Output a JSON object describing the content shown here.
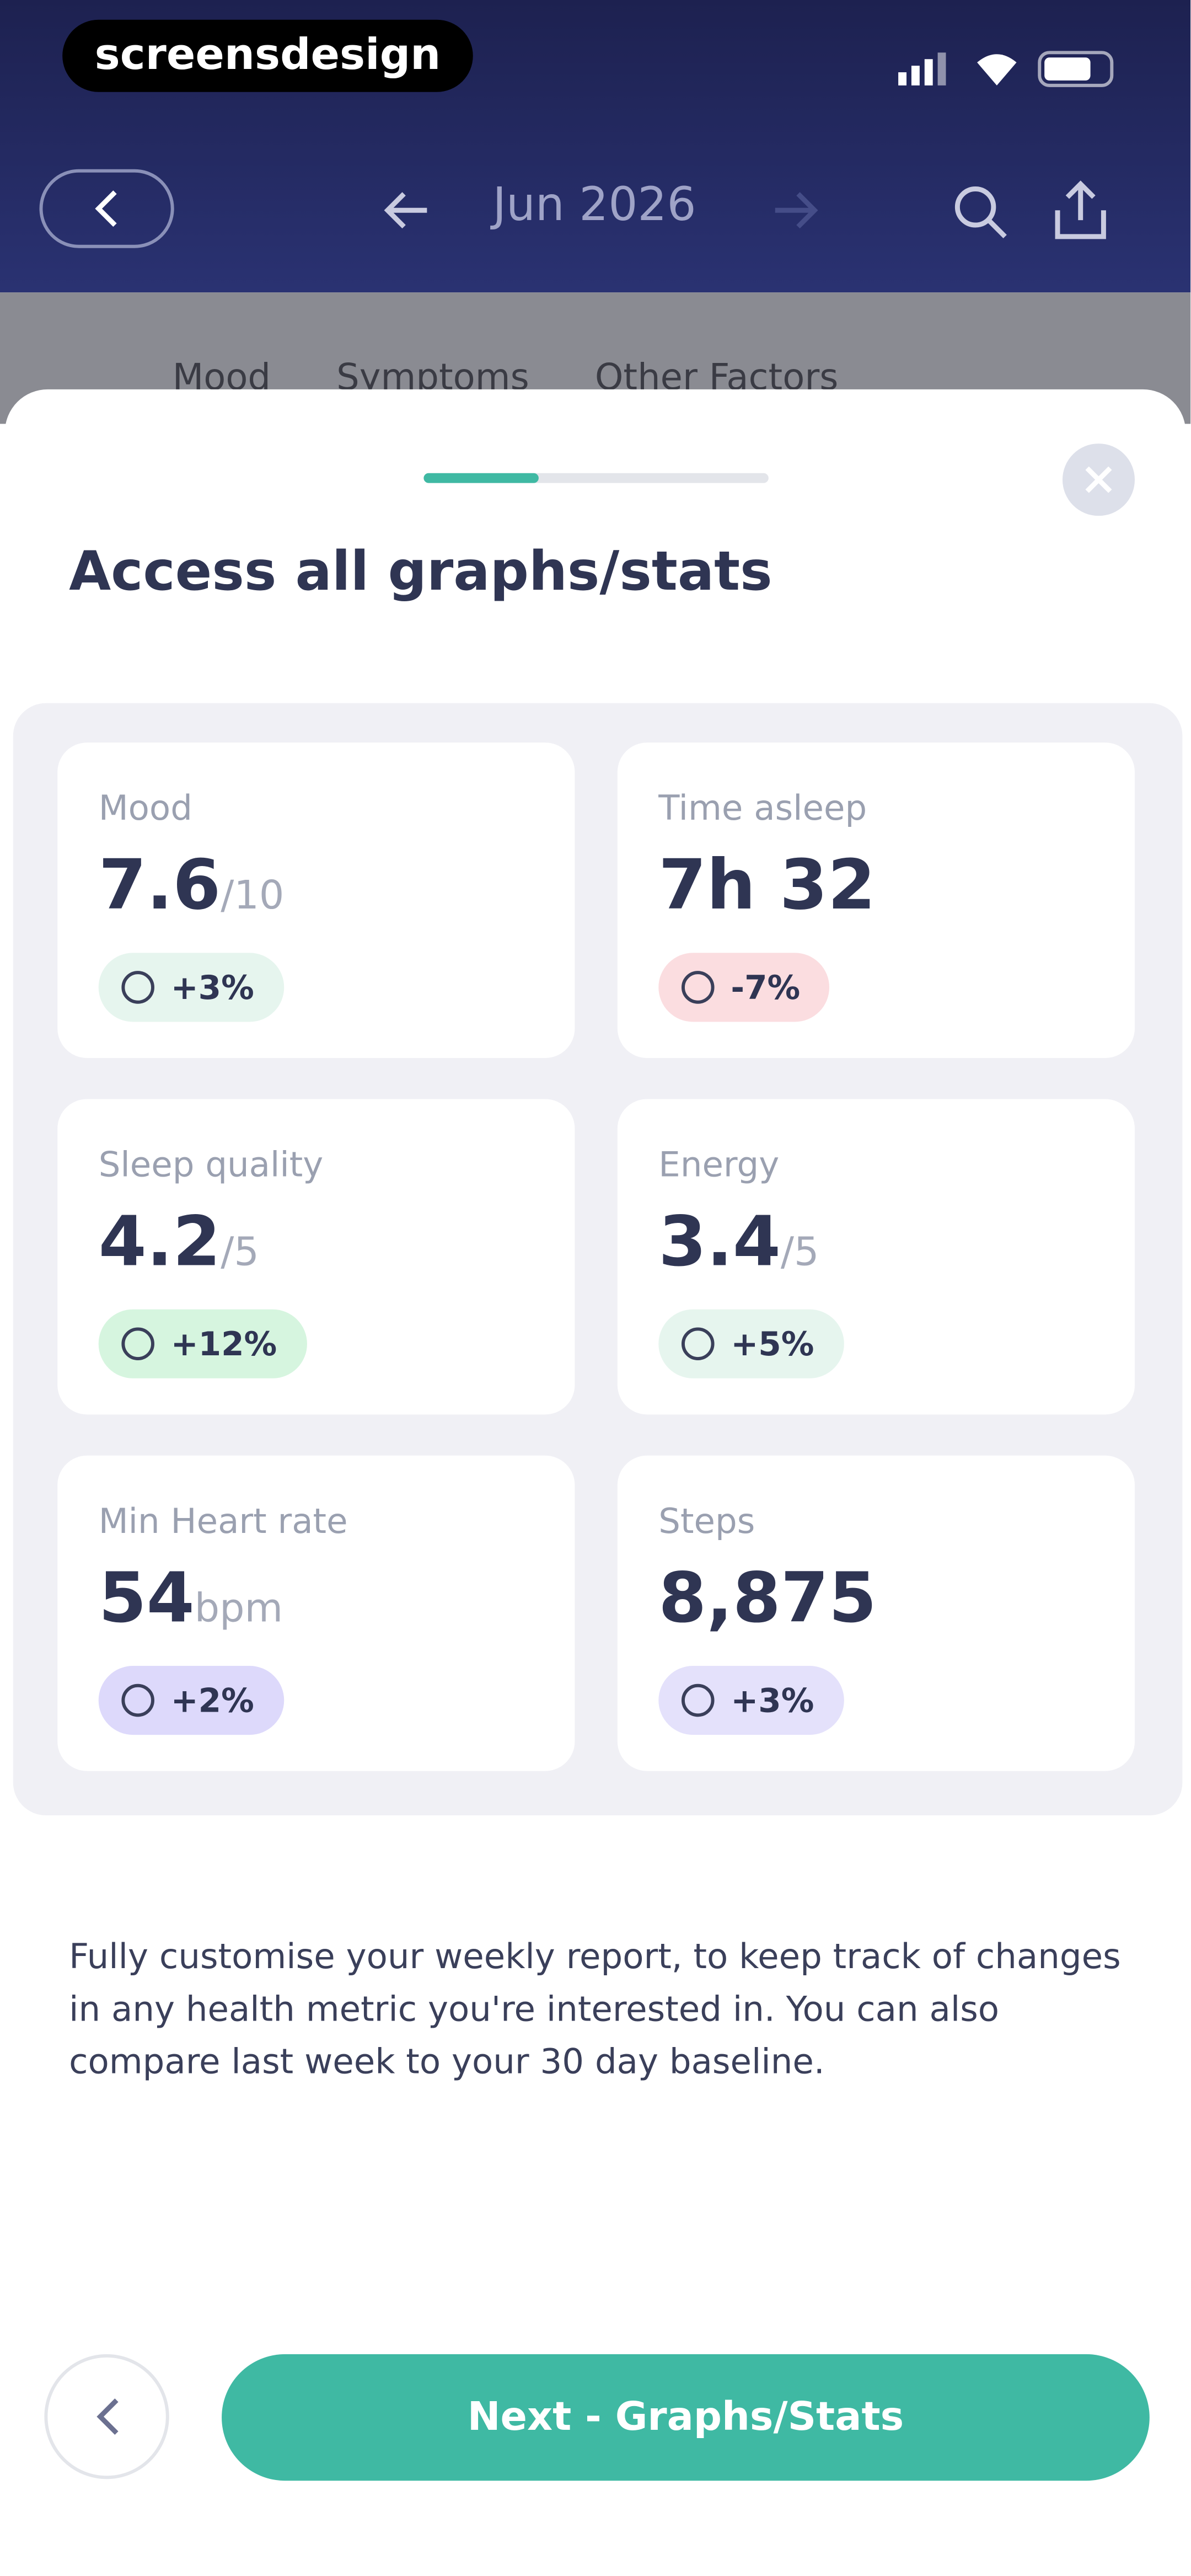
{
  "status_bar": {
    "brand": "screensdesign"
  },
  "nav": {
    "month": "Jun 2026"
  },
  "tabs": [
    "Mood",
    "Symptoms",
    "Other Factors"
  ],
  "sheet": {
    "title": "Access all graphs/stats",
    "cards": [
      {
        "label": "Mood",
        "value": "7.6",
        "unit": "/10",
        "change": "+3%",
        "badge_color": "#e6f5ee"
      },
      {
        "label": "Time asleep",
        "value": "7h 32",
        "change": "-7%",
        "badge_color": "#fbdde0"
      },
      {
        "label": "Sleep quality",
        "value": "4.2",
        "unit": "/5",
        "change": "+12%",
        "badge_color": "#d6f5df"
      },
      {
        "label": "Energy",
        "value": "3.4",
        "unit": "/5",
        "change": "+5%",
        "badge_color": "#e6f5ee"
      },
      {
        "label": "Min Heart rate",
        "value": "54",
        "unit": "bpm",
        "change": "+2%",
        "badge_color": "#ddd9fb"
      },
      {
        "label": "Steps",
        "value": "8,875",
        "change": "+3%",
        "badge_color": "#e4e1fb"
      }
    ],
    "description": "Fully customise your weekly report, to keep track of changes in any health metric you're interested in. You can also compare last week to your 30 day baseline.",
    "next_button": "Next - Graphs/Stats"
  }
}
